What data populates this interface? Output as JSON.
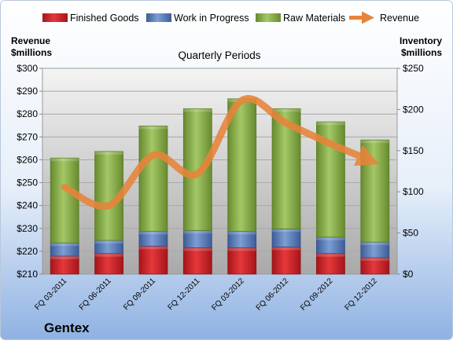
{
  "chart_data": {
    "type": "bar",
    "company": "Gentex",
    "plot_title": "Quarterly Periods",
    "left_axis_label": [
      "Revenue",
      "$millions"
    ],
    "right_axis_label": [
      "Inventory",
      "$millions"
    ],
    "categories": [
      "FQ 03-2011",
      "FQ 06-2011",
      "FQ 09-2011",
      "FQ 12-2011",
      "FQ 03-2012",
      "FQ 06-2012",
      "FQ 09-2012",
      "FQ 12-2012"
    ],
    "left_axis": {
      "min": 210,
      "max": 300,
      "step": 10,
      "prefix": "$"
    },
    "right_axis": {
      "min": 0,
      "max": 250,
      "step": 50,
      "prefix": "$"
    },
    "series": [
      {
        "name": "Finished Goods",
        "axis": "right",
        "stack": true,
        "color": "#e0262a",
        "values": [
          22,
          25,
          34,
          32,
          32,
          33,
          25,
          20
        ]
      },
      {
        "name": "Work in Progress",
        "axis": "right",
        "stack": true,
        "color": "#5a7fc0",
        "values": [
          16,
          16,
          18,
          21,
          20,
          22,
          20,
          19
        ]
      },
      {
        "name": "Raw Materials",
        "axis": "right",
        "stack": true,
        "color": "#8cb84e",
        "values": [
          103,
          108,
          128,
          148,
          161,
          146,
          140,
          124
        ]
      },
      {
        "name": "Revenue",
        "axis": "left",
        "type": "line",
        "color": "#e8843a",
        "values": [
          248,
          240,
          262,
          254,
          286,
          276,
          267,
          260
        ]
      }
    ]
  }
}
